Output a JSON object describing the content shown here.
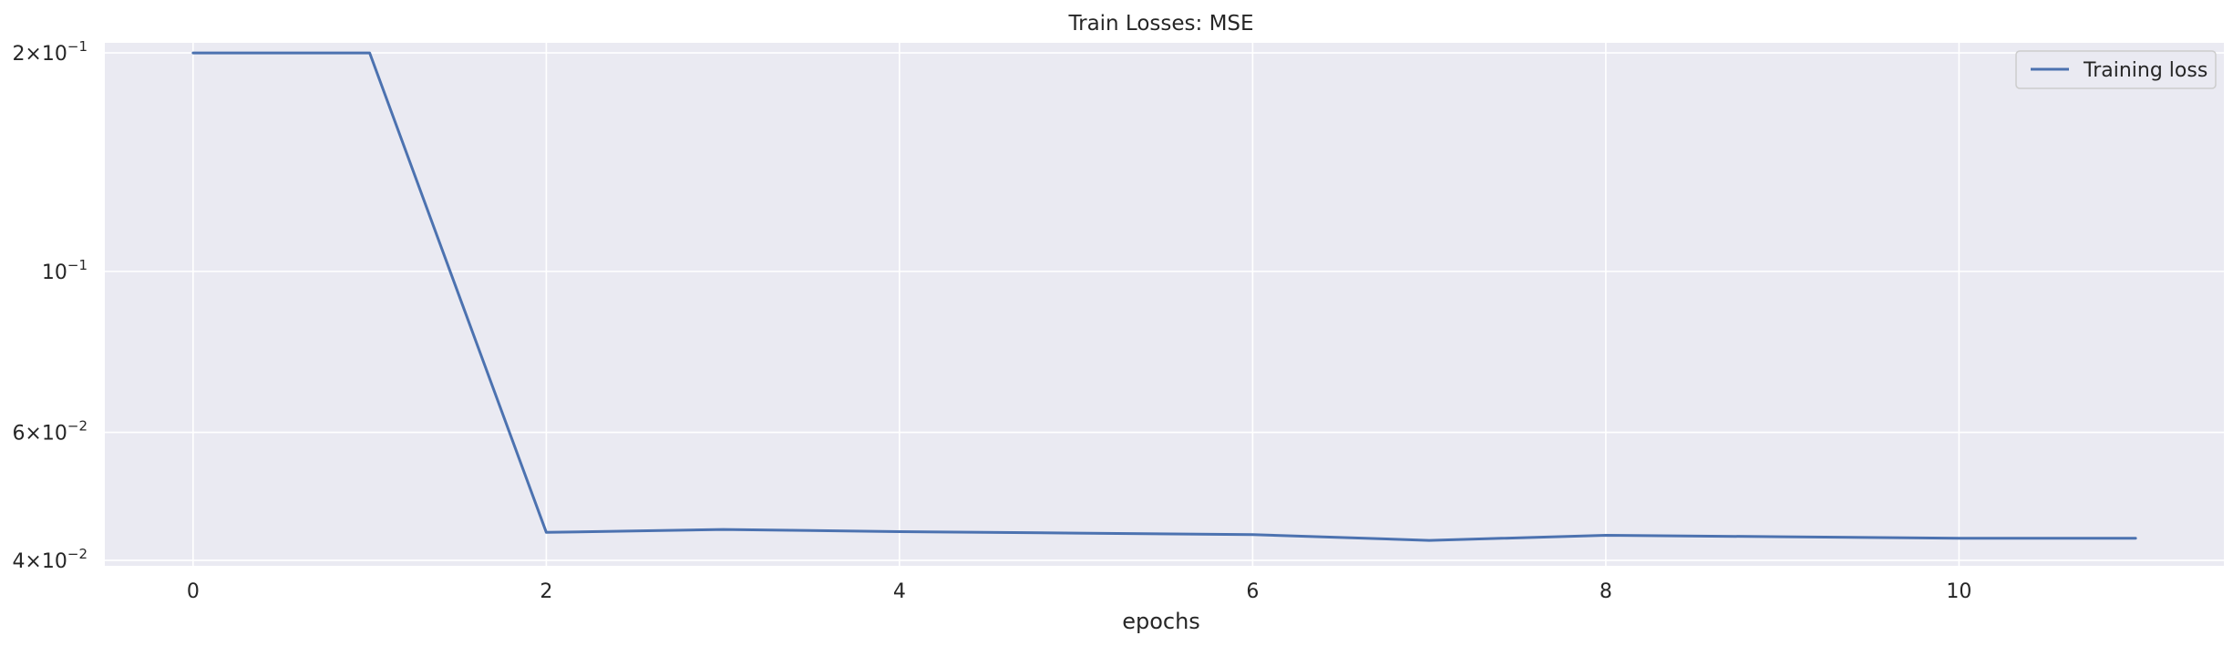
{
  "chart_data": {
    "type": "line",
    "title": "Train Losses:  MSE",
    "xlabel": "epochs",
    "ylabel": "",
    "xlim": [
      -0.5,
      11.5
    ],
    "ylim": [
      0.0393,
      0.2065
    ],
    "yscale": "log",
    "grid": true,
    "legend_position": "top-right",
    "background_color": "#eaeaf2",
    "grid_color": "#ffffff",
    "x_ticks": [
      {
        "value": 0,
        "label": "0"
      },
      {
        "value": 2,
        "label": "2"
      },
      {
        "value": 4,
        "label": "4"
      },
      {
        "value": 6,
        "label": "6"
      },
      {
        "value": 8,
        "label": "8"
      },
      {
        "value": 10,
        "label": "10"
      }
    ],
    "y_ticks": [
      {
        "value": 0.2,
        "mantissa": "2×10",
        "exponent": "−1"
      },
      {
        "value": 0.1,
        "mantissa": "10",
        "exponent": "−1"
      },
      {
        "value": 0.06,
        "mantissa": "6×10",
        "exponent": "−2"
      },
      {
        "value": 0.04,
        "mantissa": "4×10",
        "exponent": "−2"
      }
    ],
    "series": [
      {
        "name": "Training loss",
        "color": "#4c72b0",
        "x": [
          0,
          1,
          2,
          3,
          4,
          5,
          6,
          7,
          8,
          9,
          10,
          11
        ],
        "y": [
          0.2,
          0.2,
          0.0437,
          0.0441,
          0.0438,
          0.0436,
          0.0434,
          0.0426,
          0.0433,
          0.0431,
          0.0429,
          0.0429
        ]
      }
    ]
  }
}
